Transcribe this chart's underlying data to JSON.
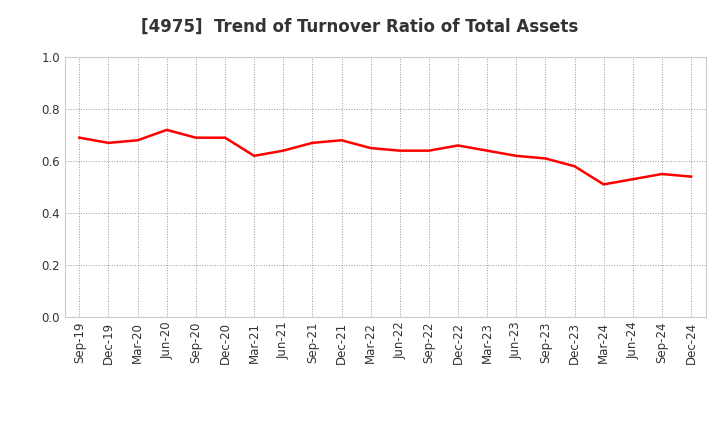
{
  "title": "[4975]  Trend of Turnover Ratio of Total Assets",
  "labels": [
    "Sep-19",
    "Dec-19",
    "Mar-20",
    "Jun-20",
    "Sep-20",
    "Dec-20",
    "Mar-21",
    "Jun-21",
    "Sep-21",
    "Dec-21",
    "Mar-22",
    "Jun-22",
    "Sep-22",
    "Dec-22",
    "Mar-23",
    "Jun-23",
    "Sep-23",
    "Dec-23",
    "Mar-24",
    "Jun-24",
    "Sep-24",
    "Dec-24"
  ],
  "values": [
    0.69,
    0.67,
    0.68,
    0.72,
    0.69,
    0.69,
    0.62,
    0.64,
    0.67,
    0.68,
    0.65,
    0.64,
    0.64,
    0.66,
    0.64,
    0.62,
    0.61,
    0.58,
    0.51,
    0.53,
    0.55,
    0.54
  ],
  "line_color": "#ff0000",
  "line_width": 1.8,
  "ylim": [
    0.0,
    1.0
  ],
  "yticks": [
    0.0,
    0.2,
    0.4,
    0.6,
    0.8,
    1.0
  ],
  "grid_color": "#999999",
  "bg_color": "#ffffff",
  "title_fontsize": 12,
  "tick_fontsize": 8.5,
  "title_color": "#333333"
}
